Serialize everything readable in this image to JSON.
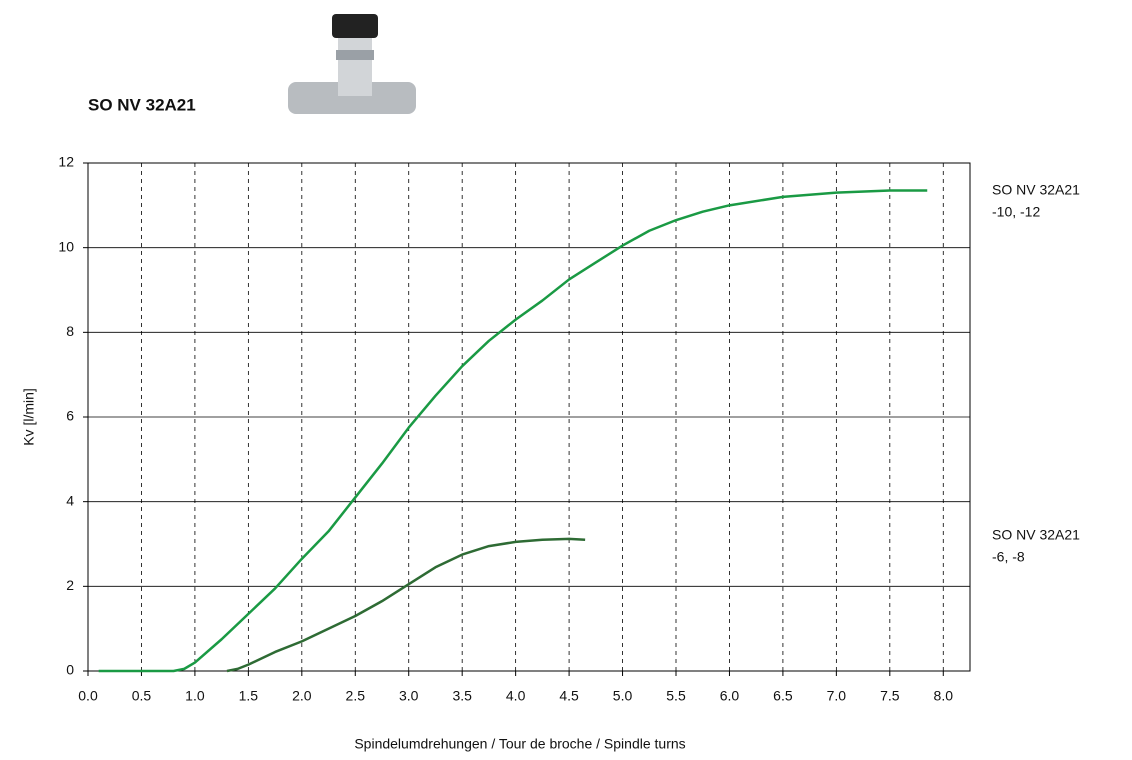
{
  "chart_data": {
    "type": "line",
    "title": "SO NV 32A21",
    "x_label": "Spindelumdrehungen / Tour de broche / Spindle turns",
    "y_label": "Kv [l/min]",
    "xlim": [
      0,
      8.25
    ],
    "ylim": [
      0,
      12
    ],
    "xticks": [
      {
        "value": 0,
        "label": "0.0"
      },
      0.5,
      {
        "value": 1,
        "label": "1.0"
      },
      1.5,
      {
        "value": 2,
        "label": "2.0"
      },
      2.5,
      {
        "value": 3,
        "label": "3.0"
      },
      3.5,
      {
        "value": 4,
        "label": "4.0"
      },
      4.5,
      {
        "value": 5,
        "label": "5.0"
      },
      5.5,
      {
        "value": 6,
        "label": "6.0"
      },
      6.5,
      {
        "value": 7,
        "label": "7.0"
      },
      7.5,
      {
        "value": 8,
        "label": "8.0"
      }
    ],
    "yticks": [
      0,
      2,
      4,
      6,
      8,
      10,
      12
    ],
    "grid": true,
    "series": [
      {
        "name": "SO NV 32A21",
        "variant": "-10, -12",
        "color": "#1a9a44",
        "x": [
          0.1,
          0.5,
          0.8,
          0.9,
          1.0,
          1.25,
          1.5,
          1.75,
          2.0,
          2.25,
          2.5,
          2.75,
          3.0,
          3.25,
          3.5,
          3.75,
          4.0,
          4.25,
          4.5,
          4.75,
          5.0,
          5.25,
          5.5,
          5.75,
          6.0,
          6.5,
          7.0,
          7.5,
          7.85
        ],
        "values": [
          0,
          0,
          0,
          0.05,
          0.2,
          0.75,
          1.35,
          1.95,
          2.65,
          3.3,
          4.1,
          4.9,
          5.75,
          6.5,
          7.2,
          7.8,
          8.3,
          8.75,
          9.25,
          9.65,
          10.05,
          10.4,
          10.65,
          10.85,
          11.0,
          11.2,
          11.3,
          11.35,
          11.35
        ]
      },
      {
        "name": "SO NV 32A21",
        "variant": "-6, -8",
        "color": "#2e6b34",
        "x": [
          1.3,
          1.4,
          1.5,
          1.75,
          2.0,
          2.5,
          2.75,
          3.0,
          3.25,
          3.5,
          3.75,
          4.0,
          4.25,
          4.5,
          4.65
        ],
        "values": [
          0,
          0.05,
          0.15,
          0.45,
          0.7,
          1.3,
          1.65,
          2.05,
          2.45,
          2.75,
          2.95,
          3.05,
          3.1,
          3.12,
          3.1
        ]
      }
    ]
  }
}
